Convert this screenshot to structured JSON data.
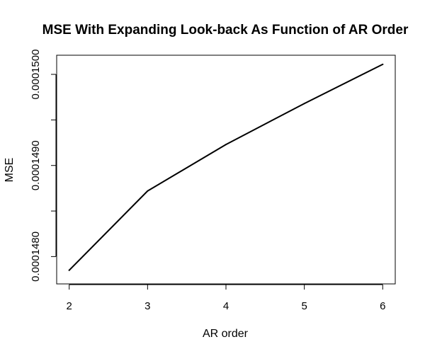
{
  "chart_data": {
    "type": "line",
    "title": "MSE With Expanding Look-back As Function of AR Order",
    "xlabel": "AR order",
    "ylabel": "MSE",
    "x": [
      2,
      3,
      4,
      5,
      6
    ],
    "series": [
      {
        "values": [
          0.00014785,
          0.00014872,
          0.00014923,
          0.00014968,
          0.00015011
        ]
      }
    ],
    "xticks": [
      2,
      3,
      4,
      5,
      6
    ],
    "xtick_labels": [
      "2",
      "3",
      "4",
      "5",
      "6"
    ],
    "yticks": [
      0.000148,
      0.0001485,
      0.000149,
      0.0001495,
      0.00015
    ],
    "ytick_labels": [
      "0.0001480",
      "",
      "0.0001490",
      "",
      "0.0001500"
    ],
    "xlim": [
      1.84,
      6.16
    ],
    "ylim": [
      0.0001477,
      0.00015021
    ],
    "grid": false,
    "legend": "none",
    "line_color": "#000000"
  }
}
